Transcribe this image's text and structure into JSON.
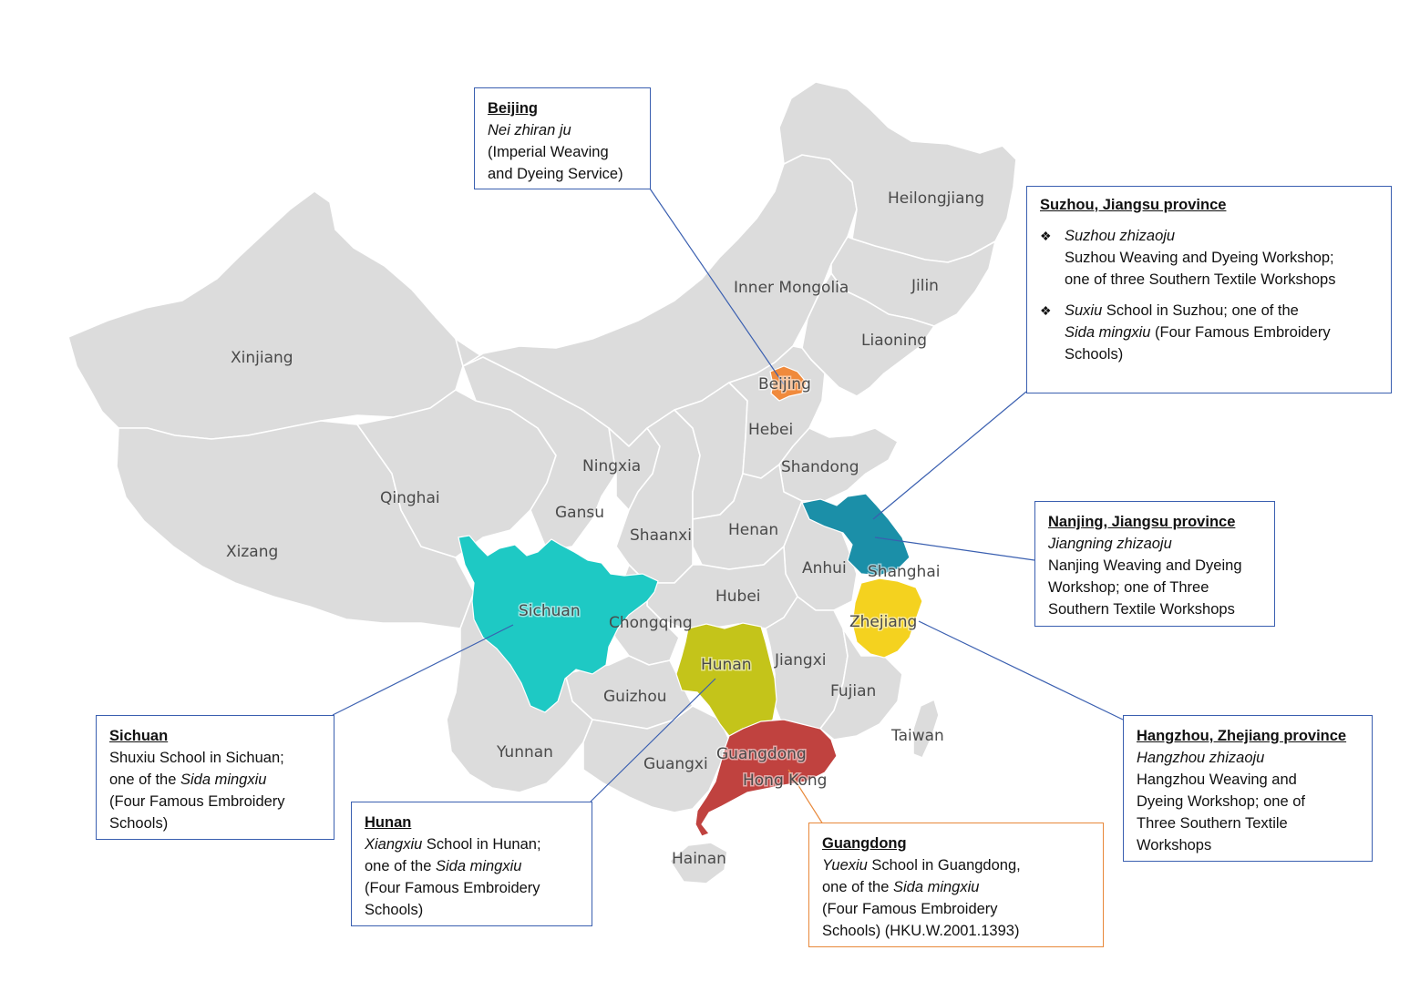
{
  "provinces": {
    "xinjiang": "Xinjiang",
    "xizang": "Xizang",
    "qinghai": "Qinghai",
    "gansu": "Gansu",
    "ningxia": "Ningxia",
    "inner_mongolia": "Inner Mongolia",
    "heilongjiang": "Heilongjiang",
    "jilin": "Jilin",
    "liaoning": "Liaoning",
    "beijing": "Beijing",
    "hebei": "Hebei",
    "shandong": "Shandong",
    "shaanxi": "Shaanxi",
    "henan": "Henan",
    "anhui": "Anhui",
    "shanghai": "Shanghai",
    "sichuan": "Sichuan",
    "chongqing": "Chongqing",
    "hubei": "Hubei",
    "zhejiang": "Zhejiang",
    "hunan": "Hunan",
    "jiangxi": "Jiangxi",
    "guizhou": "Guizhou",
    "fujian": "Fujian",
    "yunnan": "Yunnan",
    "guangxi": "Guangxi",
    "guangdong": "Guangdong",
    "hong_kong": "Hong Kong",
    "taiwan": "Taiwan",
    "hainan": "Hainan"
  },
  "colors": {
    "base_land": "#dcdcdc",
    "borders": "#ffffff",
    "beijing": "#f08a3c",
    "jiangsu": "#1b8fa8",
    "zhejiang": "#f4d21f",
    "sichuan": "#1ec9c4",
    "hunan": "#c4c41a",
    "guangdong": "#c0423f",
    "callout_border": "#3a5fb0",
    "guangdong_callout_border": "#e8883a"
  },
  "callouts": {
    "beijing": {
      "title": "Beijing",
      "italic": "Nei zhiran ju",
      "line1": "(Imperial Weaving",
      "line2": "and Dyeing Service)"
    },
    "suzhou": {
      "title": "Suzhou, Jiangsu province",
      "bullet_glyph": "❖",
      "b1_italic": "Suzhou zhizaoju",
      "b1_line2": "Suzhou Weaving and Dyeing Workshop;",
      "b1_line3": "one of three Southern Textile Workshops",
      "b2_italic": "Suxiu",
      "b2_rest": " School in Suzhou; one of the",
      "b2_italic2": "Sida mingxiu",
      "b2_rest2": " (Four Famous Embroidery",
      "b2_line3": "Schools)"
    },
    "nanjing": {
      "title": "Nanjing, Jiangsu province",
      "italic": "Jiangning zhizaoju",
      "line1": "Nanjing Weaving and Dyeing",
      "line2": "Workshop; one of Three",
      "line3": "Southern Textile Workshops"
    },
    "hangzhou": {
      "title": "Hangzhou, Zhejiang province",
      "italic": "Hangzhou zhizaoju",
      "line1": "Hangzhou Weaving and",
      "line2": "Dyeing Workshop; one of",
      "line3": "Three Southern Textile",
      "line4": "Workshops"
    },
    "sichuan": {
      "title": "Sichuan",
      "line1": "Shuxiu School in Sichuan;",
      "line2_a": "one of the ",
      "line2_italic": "Sida mingxiu",
      "line3": "(Four Famous Embroidery",
      "line4": "Schools)"
    },
    "hunan": {
      "title": "Hunan",
      "italic": "Xiangxiu",
      "line1_rest": " School in Hunan;",
      "line2_a": "one of the ",
      "line2_italic": "Sida mingxiu",
      "line3": "(Four Famous Embroidery",
      "line4": "Schools)"
    },
    "guangdong": {
      "title": "Guangdong",
      "italic": "Yuexiu",
      "line1_rest": " School in Guangdong,",
      "line2_a": "one of the ",
      "line2_italic": "Sida mingxiu",
      "line3": "(Four Famous Embroidery",
      "line4": "Schools)  (HKU.W.2001.1393)"
    }
  }
}
